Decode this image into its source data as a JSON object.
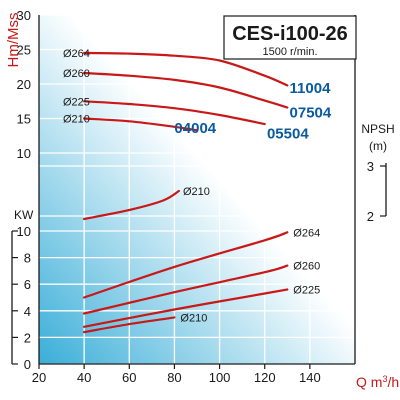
{
  "header": {
    "model": "CES-i100-26",
    "speed": "1500 r/min."
  },
  "colors": {
    "curve": "#c81818",
    "model_code": "#0a5aa0",
    "axis_label": "#c81818",
    "text": "#1a1a1a",
    "grid": "#ffffff",
    "gradient_light": "#ffffff",
    "gradient_dark": "#3aaed8"
  },
  "chart_data": [
    {
      "type": "line",
      "title": "",
      "xlabel": "Q m³/h",
      "ylabel": "Hm/Mss",
      "xlim": [
        20,
        160
      ],
      "ylim": [
        10,
        30
      ],
      "x_ticks": [
        20,
        40,
        60,
        80,
        100,
        120,
        140
      ],
      "y_ticks": [
        10,
        15,
        20,
        25,
        30
      ],
      "grid": true,
      "series": [
        {
          "name": "Ø264",
          "points": [
            [
              40,
              24.5
            ],
            [
              60,
              24.4
            ],
            [
              80,
              24.1
            ],
            [
              100,
              23.4
            ],
            [
              120,
              21.2
            ],
            [
              130,
              19.8
            ]
          ]
        },
        {
          "name": "Ø260",
          "points": [
            [
              40,
              21.6
            ],
            [
              60,
              21.2
            ],
            [
              80,
              20.6
            ],
            [
              100,
              19.5
            ],
            [
              120,
              17.6
            ],
            [
              130,
              16.6
            ]
          ]
        },
        {
          "name": "Ø225",
          "points": [
            [
              40,
              17.5
            ],
            [
              60,
              17.1
            ],
            [
              80,
              16.5
            ],
            [
              100,
              15.5
            ],
            [
              120,
              14.2
            ]
          ]
        },
        {
          "name": "Ø210",
          "points": [
            [
              40,
              15.0
            ],
            [
              60,
              14.6
            ],
            [
              80,
              13.8
            ],
            [
              90,
              13.3
            ]
          ]
        }
      ],
      "model_codes": [
        {
          "label": "11004",
          "x": 131,
          "y": 19.6
        },
        {
          "label": "07504",
          "x": 131,
          "y": 16.0
        },
        {
          "label": "05504",
          "x": 121,
          "y": 13.0
        },
        {
          "label": "04004",
          "x": 80,
          "y": 13.8
        }
      ]
    },
    {
      "type": "line",
      "title": "",
      "xlabel": "",
      "ylabel": "NPSH (m)",
      "ylim": [
        1.5,
        3.5
      ],
      "y_ticks": [
        2,
        3
      ],
      "series": [
        {
          "name": "Ø210",
          "points": [
            [
              40,
              1.94
            ],
            [
              60,
              2.12
            ],
            [
              75,
              2.31
            ],
            [
              82,
              2.5
            ]
          ]
        }
      ]
    },
    {
      "type": "line",
      "title": "",
      "xlabel": "Q m³/h",
      "ylabel": "KW",
      "xlim": [
        20,
        160
      ],
      "ylim": [
        0,
        10
      ],
      "x_ticks": [
        20,
        40,
        60,
        80,
        100,
        120,
        140
      ],
      "y_ticks": [
        0,
        2,
        4,
        6,
        8,
        10
      ],
      "series": [
        {
          "name": "Ø264",
          "points": [
            [
              40,
              5.0
            ],
            [
              80,
              7.3
            ],
            [
              120,
              9.3
            ],
            [
              130,
              9.9
            ]
          ]
        },
        {
          "name": "Ø260",
          "points": [
            [
              40,
              3.8
            ],
            [
              80,
              5.4
            ],
            [
              120,
              6.9
            ],
            [
              130,
              7.4
            ]
          ]
        },
        {
          "name": "Ø225",
          "points": [
            [
              40,
              2.8
            ],
            [
              80,
              4.1
            ],
            [
              120,
              5.3
            ],
            [
              130,
              5.6
            ]
          ]
        },
        {
          "name": "Ø210",
          "points": [
            [
              40,
              2.4
            ],
            [
              60,
              3.0
            ],
            [
              80,
              3.5
            ]
          ]
        }
      ]
    }
  ]
}
